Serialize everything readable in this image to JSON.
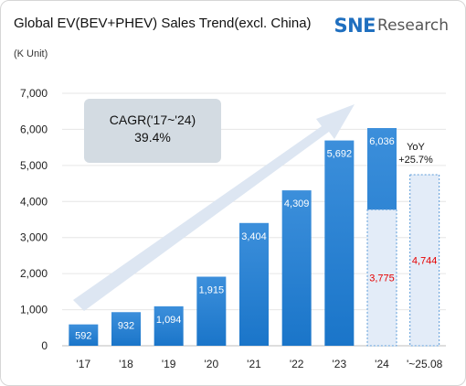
{
  "header": {
    "title": "Global EV(BEV+PHEV) Sales Trend(excl. China)",
    "unit": "(K Unit)",
    "logo_sne": "SNE",
    "logo_research": "Research"
  },
  "chart_data": {
    "type": "bar",
    "title": "Global EV(BEV+PHEV) Sales Trend(excl. China)",
    "ylabel": "(K Unit)",
    "ylim": [
      0,
      7000
    ],
    "yticks": [
      0,
      1000,
      2000,
      3000,
      4000,
      5000,
      6000,
      7000
    ],
    "ytick_labels": [
      "0",
      "1,000",
      "2,000",
      "3,000",
      "4,000",
      "5,000",
      "6,000",
      "7,000"
    ],
    "categories": [
      "'17",
      "'18",
      "'19",
      "'20",
      "'21",
      "'22",
      "'23",
      "'24",
      "'~25.08"
    ],
    "values": [
      592,
      932,
      1094,
      1915,
      3404,
      4309,
      5692,
      6036,
      4744
    ],
    "value_labels": [
      "592",
      "932",
      "1,094",
      "1,915",
      "3,404",
      "4,309",
      "5,692",
      "6,036",
      "4,744"
    ],
    "partial": {
      "category": "'24",
      "value": 3775,
      "label": "3,775"
    },
    "annotations": {
      "cagr_line1": "CAGR('17~'24)",
      "cagr_line2": "39.4%",
      "yoy_line1": "YoY",
      "yoy_line2": "+25.7%"
    },
    "grid": true,
    "legend": "none",
    "colors": {
      "bar": "#1a75c9",
      "bar_top": "#3c8fdb",
      "partial_fill": "#e3ecf8",
      "partial_border": "#5b9bd9",
      "partial_label": "#e60000",
      "arrow": "#dde6f2",
      "cagr_box": "#d3dbe2"
    }
  }
}
